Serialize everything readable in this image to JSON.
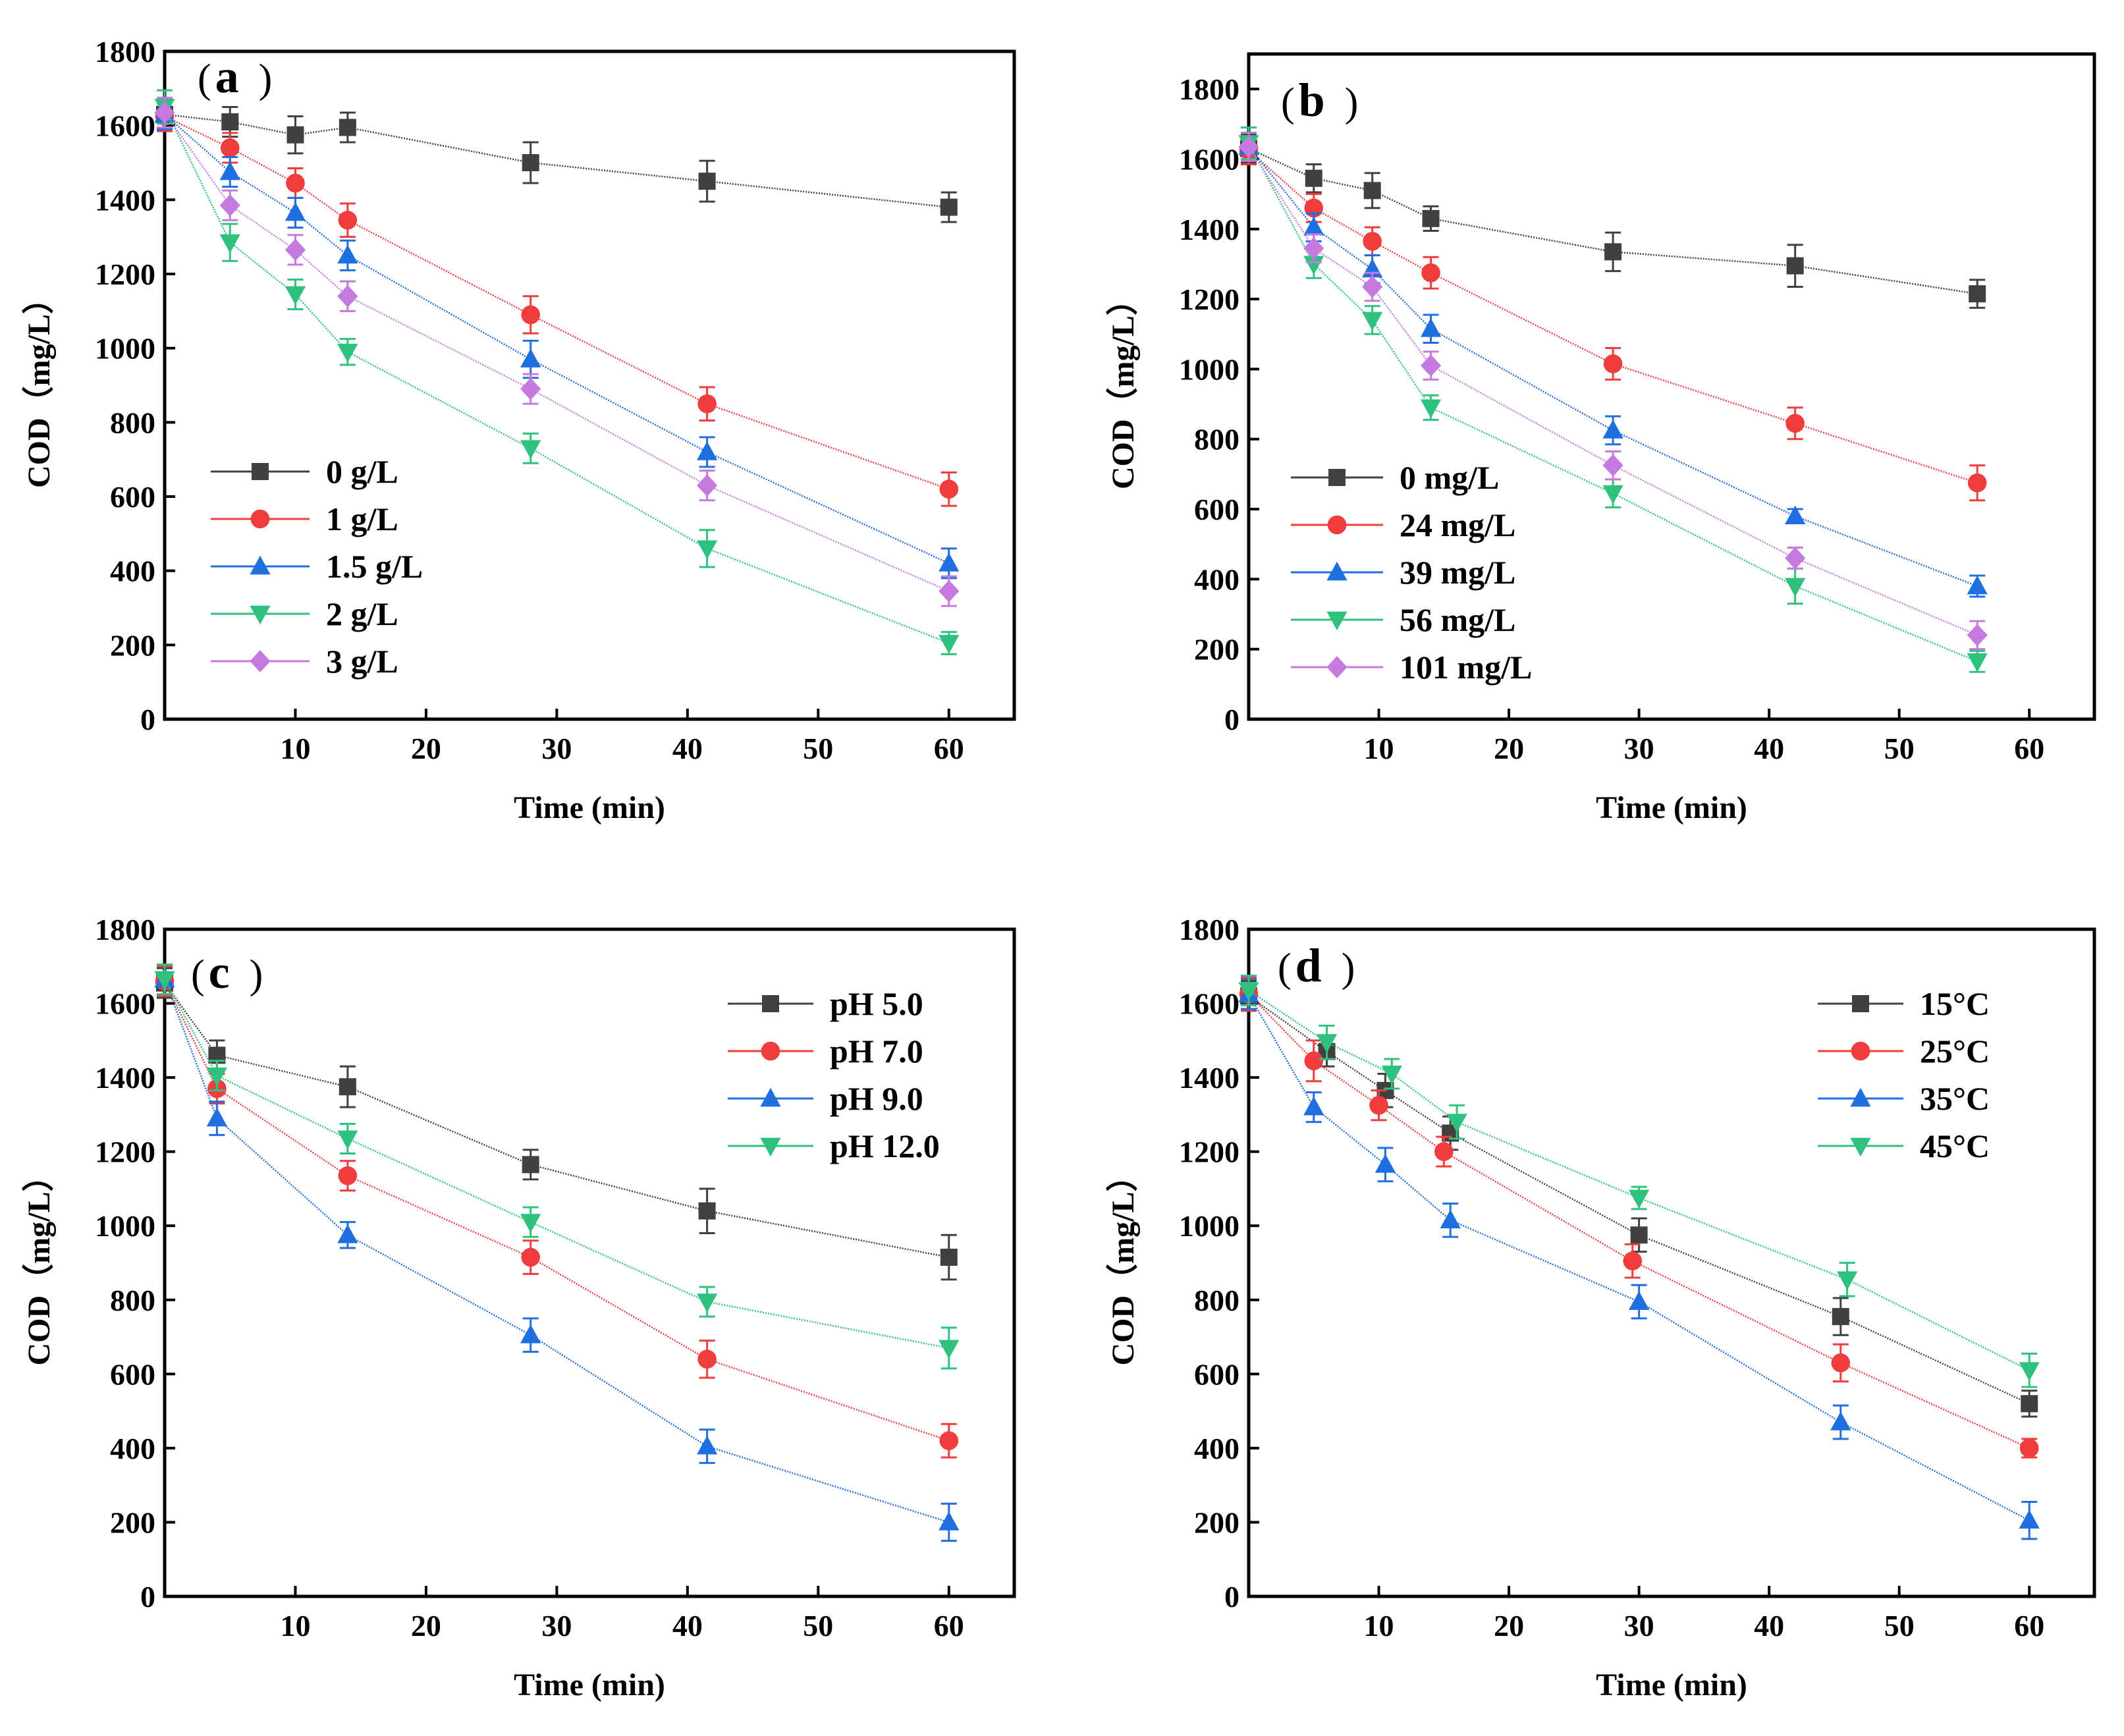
{
  "colors": {
    "black": "#404040",
    "red": "#f03c3c",
    "blue": "#1f6fe0",
    "green": "#2ec27e",
    "purple": "#c57ae0"
  },
  "chart_data": [
    {
      "type": "line",
      "panel": "a",
      "label_open": "(",
      "label_letter": "a",
      "label_close": ")",
      "xlabel": "Time (min)",
      "ylabel": "COD（mg/L）",
      "xlim": [
        0,
        65
      ],
      "ylim": [
        0,
        1800
      ],
      "xticks": [
        10,
        20,
        30,
        40,
        50,
        60
      ],
      "yticks": [
        0,
        200,
        400,
        600,
        800,
        1000,
        1200,
        1400,
        1600,
        1800
      ],
      "legend_position": "bottom-left",
      "series": [
        {
          "name": "0 g/L",
          "color": "#404040",
          "marker": "square",
          "x": [
            0,
            5,
            10,
            14,
            28,
            41.5,
            60
          ],
          "y": [
            1630,
            1610,
            1575,
            1595,
            1500,
            1450,
            1380
          ],
          "err": [
            40,
            40,
            50,
            40,
            55,
            55,
            40
          ]
        },
        {
          "name": "1 g/L",
          "color": "#f03c3c",
          "marker": "circle",
          "x": [
            0,
            5,
            10,
            14,
            28,
            41.5,
            60
          ],
          "y": [
            1625,
            1540,
            1445,
            1345,
            1090,
            850,
            620
          ],
          "err": [
            40,
            40,
            40,
            45,
            50,
            45,
            45
          ]
        },
        {
          "name": "1.5 g/L",
          "color": "#1f6fe0",
          "marker": "triangle-up",
          "x": [
            0,
            5,
            10,
            14,
            28,
            41.5,
            60
          ],
          "y": [
            1630,
            1475,
            1365,
            1250,
            970,
            720,
            420
          ],
          "err": [
            40,
            40,
            40,
            40,
            50,
            40,
            40
          ]
        },
        {
          "name": "2 g/L",
          "color": "#2ec27e",
          "marker": "triangle-down",
          "x": [
            0,
            5,
            10,
            14,
            28,
            41.5,
            60
          ],
          "y": [
            1650,
            1285,
            1145,
            990,
            730,
            460,
            205
          ],
          "err": [
            45,
            50,
            40,
            35,
            40,
            50,
            30
          ]
        },
        {
          "name": "3 g/L",
          "color": "#c57ae0",
          "marker": "diamond",
          "x": [
            0,
            5,
            10,
            14,
            28,
            41.5,
            60
          ],
          "y": [
            1635,
            1385,
            1265,
            1140,
            890,
            630,
            345
          ],
          "err": [
            40,
            40,
            40,
            40,
            40,
            40,
            40
          ]
        }
      ]
    },
    {
      "type": "line",
      "panel": "b",
      "label_open": "(",
      "label_letter": "b",
      "label_close": ")",
      "xlabel": "Time (min)",
      "ylabel": "COD（mg/L）",
      "xlim": [
        0,
        65
      ],
      "ylim": [
        0,
        1900
      ],
      "xticks": [
        10,
        20,
        30,
        40,
        50,
        60
      ],
      "yticks": [
        0,
        200,
        400,
        600,
        800,
        1000,
        1200,
        1400,
        1600,
        1800
      ],
      "legend_position": "bottom-left",
      "series": [
        {
          "name": "0 mg/L",
          "color": "#404040",
          "marker": "square",
          "x": [
            0,
            5,
            9.5,
            14,
            28,
            42,
            56
          ],
          "y": [
            1630,
            1545,
            1510,
            1430,
            1335,
            1295,
            1215
          ],
          "err": [
            40,
            40,
            50,
            35,
            55,
            60,
            40
          ]
        },
        {
          "name": "24 mg/L",
          "color": "#f03c3c",
          "marker": "circle",
          "x": [
            0,
            5,
            9.5,
            14,
            28,
            42,
            56
          ],
          "y": [
            1625,
            1460,
            1365,
            1275,
            1015,
            845,
            675
          ],
          "err": [
            40,
            40,
            40,
            45,
            45,
            45,
            50
          ]
        },
        {
          "name": "39 mg/L",
          "color": "#1f6fe0",
          "marker": "triangle-up",
          "x": [
            0,
            5,
            9.5,
            14,
            28,
            42,
            56
          ],
          "y": [
            1635,
            1405,
            1285,
            1115,
            825,
            580,
            380
          ],
          "err": [
            40,
            40,
            40,
            40,
            40,
            20,
            30
          ]
        },
        {
          "name": "56 mg/L",
          "color": "#2ec27e",
          "marker": "triangle-down",
          "x": [
            0,
            5,
            9.5,
            14,
            28,
            42,
            56
          ],
          "y": [
            1645,
            1300,
            1140,
            890,
            645,
            380,
            165
          ],
          "err": [
            45,
            40,
            40,
            35,
            40,
            50,
            30
          ]
        },
        {
          "name": "101 mg/L",
          "color": "#c57ae0",
          "marker": "diamond",
          "x": [
            0,
            5,
            9.5,
            14,
            28,
            42,
            56
          ],
          "y": [
            1635,
            1345,
            1235,
            1010,
            725,
            460,
            240
          ],
          "err": [
            40,
            40,
            40,
            40,
            40,
            30,
            40
          ]
        }
      ]
    },
    {
      "type": "line",
      "panel": "c",
      "label_open": "(",
      "label_letter": "c",
      "label_close": ")",
      "xlabel": "Time (min)",
      "ylabel": "COD（mg/L）",
      "xlim": [
        0,
        65
      ],
      "ylim": [
        0,
        1800
      ],
      "xticks": [
        10,
        20,
        30,
        40,
        50,
        60
      ],
      "yticks": [
        0,
        200,
        400,
        600,
        800,
        1000,
        1200,
        1400,
        1600,
        1800
      ],
      "legend_position": "top-right",
      "series": [
        {
          "name": "pH 5.0",
          "color": "#404040",
          "marker": "square",
          "x": [
            0,
            4,
            14,
            28,
            41.5,
            60
          ],
          "y": [
            1655,
            1460,
            1375,
            1165,
            1040,
            915
          ],
          "err": [
            40,
            40,
            55,
            40,
            60,
            60
          ]
        },
        {
          "name": "pH 7.0",
          "color": "#f03c3c",
          "marker": "circle",
          "x": [
            0,
            4,
            14,
            28,
            41.5,
            60
          ],
          "y": [
            1660,
            1370,
            1135,
            915,
            640,
            420
          ],
          "err": [
            40,
            40,
            40,
            45,
            50,
            45
          ]
        },
        {
          "name": "pH 9.0",
          "color": "#1f6fe0",
          "marker": "triangle-up",
          "x": [
            0,
            4,
            14,
            28,
            41.5,
            60
          ],
          "y": [
            1665,
            1290,
            975,
            705,
            405,
            200
          ],
          "err": [
            40,
            45,
            35,
            45,
            45,
            50
          ]
        },
        {
          "name": "pH 12.0",
          "color": "#2ec27e",
          "marker": "triangle-down",
          "x": [
            0,
            4,
            14,
            28,
            41.5,
            60
          ],
          "y": [
            1665,
            1405,
            1235,
            1010,
            795,
            670
          ],
          "err": [
            40,
            40,
            40,
            40,
            40,
            55
          ]
        }
      ]
    },
    {
      "type": "line",
      "panel": "d",
      "label_open": "(",
      "label_letter": "d",
      "label_close": ")",
      "xlabel": "Time (min)",
      "ylabel": "COD（mg/L）",
      "xlim": [
        0,
        65
      ],
      "ylim": [
        0,
        1800
      ],
      "xticks": [
        10,
        20,
        30,
        40,
        50,
        60
      ],
      "yticks": [
        0,
        200,
        400,
        600,
        800,
        1000,
        1200,
        1400,
        1600,
        1800
      ],
      "legend_position": "top-right",
      "series": [
        {
          "name": "15°C",
          "color": "#404040",
          "marker": "square",
          "x": [
            0,
            6,
            10.5,
            15.5,
            30,
            45.5,
            60
          ],
          "y": [
            1620,
            1470,
            1365,
            1250,
            975,
            755,
            520
          ],
          "err": [
            40,
            40,
            45,
            45,
            45,
            50,
            35
          ]
        },
        {
          "name": "25°C",
          "color": "#f03c3c",
          "marker": "circle",
          "x": [
            0,
            5,
            10,
            15,
            29.5,
            45.5,
            60
          ],
          "y": [
            1625,
            1445,
            1325,
            1200,
            905,
            630,
            400
          ],
          "err": [
            45,
            55,
            40,
            40,
            45,
            50,
            25
          ]
        },
        {
          "name": "35°C",
          "color": "#1f6fe0",
          "marker": "triangle-up",
          "x": [
            0,
            5,
            10.5,
            15.5,
            30,
            45.5,
            60
          ],
          "y": [
            1625,
            1320,
            1165,
            1015,
            795,
            470,
            205
          ],
          "err": [
            40,
            40,
            45,
            45,
            45,
            45,
            50
          ]
        },
        {
          "name": "45°C",
          "color": "#2ec27e",
          "marker": "triangle-down",
          "x": [
            0,
            6,
            11,
            16,
            30,
            46,
            60
          ],
          "y": [
            1635,
            1495,
            1410,
            1280,
            1075,
            855,
            610
          ],
          "err": [
            40,
            45,
            40,
            45,
            30,
            45,
            45
          ]
        }
      ]
    }
  ]
}
